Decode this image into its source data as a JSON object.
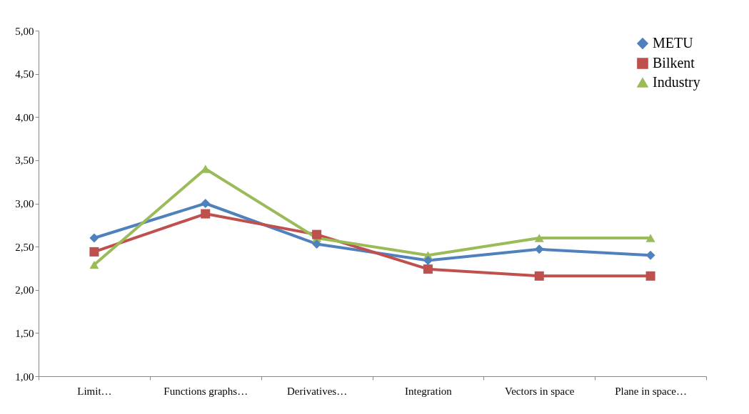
{
  "chart_data": {
    "type": "line",
    "categories": [
      "Limit…",
      "Functions graphs…",
      "Derivatives…",
      "Integration",
      "Vectors in space",
      "Plane in space…"
    ],
    "series": [
      {
        "name": "METU",
        "color": "#4f81bd",
        "marker": "diamond",
        "values": [
          2.6,
          3.0,
          2.53,
          2.34,
          2.47,
          2.4
        ]
      },
      {
        "name": "Bilkent",
        "color": "#c0504d",
        "marker": "square",
        "values": [
          2.44,
          2.88,
          2.64,
          2.24,
          2.16,
          2.16
        ]
      },
      {
        "name": "Industry",
        "color": "#9bbb59",
        "marker": "triangle",
        "values": [
          2.29,
          3.4,
          2.6,
          2.4,
          2.6,
          2.6
        ]
      }
    ],
    "ylim": [
      1,
      5
    ],
    "yticks": [
      {
        "value": 1,
        "label": "1,00"
      },
      {
        "value": 1.5,
        "label": "1,50"
      },
      {
        "value": 2,
        "label": "2,00"
      },
      {
        "value": 2.5,
        "label": "2,50"
      },
      {
        "value": 3,
        "label": "3,00"
      },
      {
        "value": 3.5,
        "label": "3,50"
      },
      {
        "value": 4,
        "label": "4,00"
      },
      {
        "value": 4.5,
        "label": "4,50"
      },
      {
        "value": 5,
        "label": "5,00"
      }
    ],
    "legend": "top right"
  }
}
